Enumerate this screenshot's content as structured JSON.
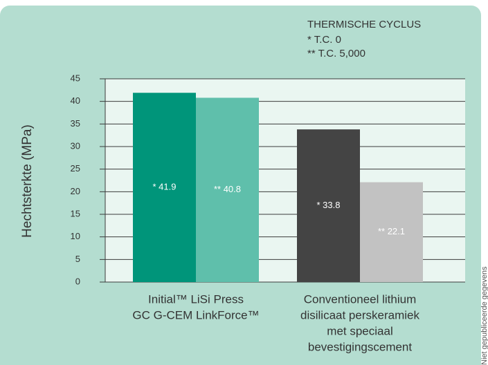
{
  "chart_data": {
    "type": "bar",
    "ylabel": "Hechtsterkte (MPa)",
    "legend_title": "THERMISCHE CYCLUS",
    "note": "Niet gepubliceerde gegevens",
    "categories": [
      [
        "Initial™ LiSi Press",
        "GC G-CEM LinkForce™"
      ],
      [
        "Conventioneel lithium",
        "disilicaat perskeramiek",
        "met speciaal",
        "bevestigingscement"
      ]
    ],
    "series": [
      {
        "name": "* T.C. 0",
        "colors": [
          "#00957a",
          "#444444"
        ],
        "values": [
          41.9,
          33.8
        ],
        "value_labels": [
          "* 41.9",
          "* 33.8"
        ]
      },
      {
        "name": "** T.C. 5,000",
        "colors": [
          "#5fbfab",
          "#c2c2c2"
        ],
        "values": [
          40.8,
          22.1
        ],
        "value_labels": [
          "** 40.8",
          "** 22.1"
        ]
      }
    ],
    "ylim": [
      0,
      45
    ],
    "yticks": [
      0,
      5,
      10,
      15,
      20,
      25,
      30,
      35,
      40,
      45
    ],
    "grid": true
  }
}
